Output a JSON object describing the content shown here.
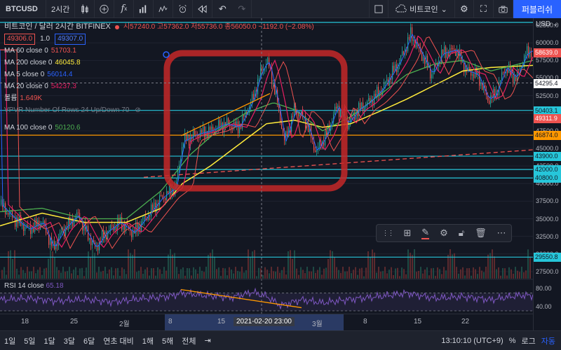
{
  "toolbar": {
    "symbol": "BTCUSD",
    "interval": "2시간",
    "compare_label": "비트코인",
    "publish_label": "퍼블리쉬",
    "icons": [
      "candle-type-icon",
      "add-indicator-icon",
      "fx-icon",
      "layout-icon",
      "template-icon",
      "alert-icon",
      "replay-icon",
      "undo-icon",
      "redo-icon"
    ]
  },
  "legend": {
    "title": "비트코인 / 달러  2시간  BITFINEX",
    "ohlc": "시57240.0 고57362.0 저55736.0 종56050.0 −1192.0 (−2.08%)",
    "sell_price": "49306.0",
    "qty": "1.0",
    "buy_price": "49307.0",
    "indicators": [
      {
        "label": "MA 60 close 0",
        "value": "51703.1",
        "color": "#ef5350"
      },
      {
        "label": "MA 200 close 0",
        "value": "46045.8",
        "color": "#ffeb3b"
      },
      {
        "label": "MA 5 close 0",
        "value": "56014.4",
        "color": "#2962ff"
      },
      {
        "label": "MA 20 close 0",
        "value": "54237.3",
        "color": "#e91e63"
      },
      {
        "label": "볼륨",
        "value": "1.649K",
        "color": "#ef5350"
      },
      {
        "label": "VPVR Number Of Rows 24 Up/Down 70",
        "value": "",
        "color": "#787b86"
      },
      {
        "label": "MA 100 close 0",
        "value": "50120.6",
        "color": "#4caf50"
      }
    ],
    "rsi_label": "RSI 14 close",
    "rsi_value": "65.18"
  },
  "currency": "USD",
  "chart_data": {
    "type": "candlestick",
    "y_ticks": [
      62500,
      60000,
      57500,
      55000,
      52500,
      50000,
      47500,
      45000,
      42500,
      40000,
      37500,
      35000,
      32500,
      30000,
      27500
    ],
    "ylim": [
      26500,
      63500
    ],
    "price_tags": [
      {
        "value": "58639.0",
        "color": "#ef5350"
      },
      {
        "value": "54295.4",
        "color": "#ffffff"
      },
      {
        "value": "50403.1",
        "color": "#26c6da"
      },
      {
        "value": "49311.9",
        "color": "#ef5350"
      },
      {
        "value": "46874.0",
        "color": "#ff9800"
      },
      {
        "value": "43900.0",
        "color": "#26c6da"
      },
      {
        "value": "42000.0",
        "color": "#26c6da"
      },
      {
        "value": "40800.0",
        "color": "#26c6da"
      },
      {
        "value": "29550.8",
        "color": "#26c6da"
      }
    ],
    "horizontal_levels": [
      {
        "value": 62900,
        "color": "#26c6da"
      },
      {
        "value": 50403.1,
        "color": "#26c6da"
      },
      {
        "value": 46874,
        "color": "#ff9800"
      },
      {
        "value": 43900,
        "color": "#26c6da"
      },
      {
        "value": 42000,
        "color": "#26c6da"
      },
      {
        "value": 40800,
        "color": "#26c6da"
      },
      {
        "value": 29550.8,
        "color": "#26c6da"
      }
    ],
    "x_ticks": [
      "18",
      "25",
      "2월",
      "8",
      "15",
      "3월",
      "8",
      "15",
      "22"
    ],
    "crosshair_label": "2021-02-20  23:00",
    "rsi_ticks": [
      80,
      40
    ],
    "price_path": [
      [
        0,
        37000
      ],
      [
        20,
        35000
      ],
      [
        40,
        33500
      ],
      [
        60,
        34500
      ],
      [
        75,
        30800
      ],
      [
        90,
        33500
      ],
      [
        110,
        35500
      ],
      [
        135,
        30800
      ],
      [
        150,
        33000
      ],
      [
        170,
        34500
      ],
      [
        190,
        33000
      ],
      [
        210,
        35500
      ],
      [
        230,
        38000
      ],
      [
        250,
        39500
      ],
      [
        260,
        46000
      ],
      [
        280,
        47000
      ],
      [
        300,
        47500
      ],
      [
        320,
        48500
      ],
      [
        340,
        48000
      ],
      [
        360,
        52000
      ],
      [
        370,
        55500
      ],
      [
        380,
        57500
      ],
      [
        385,
        56000
      ],
      [
        395,
        51500
      ],
      [
        405,
        46000
      ],
      [
        420,
        50500
      ],
      [
        435,
        49000
      ],
      [
        450,
        44500
      ],
      [
        465,
        47000
      ],
      [
        480,
        51000
      ],
      [
        495,
        48500
      ],
      [
        510,
        50500
      ],
      [
        525,
        51500
      ],
      [
        545,
        53500
      ],
      [
        570,
        57500
      ],
      [
        585,
        61200
      ],
      [
        600,
        58500
      ],
      [
        615,
        55500
      ],
      [
        630,
        58500
      ],
      [
        650,
        59000
      ],
      [
        665,
        56000
      ],
      [
        680,
        55500
      ],
      [
        695,
        52000
      ],
      [
        705,
        52500
      ],
      [
        720,
        56500
      ],
      [
        735,
        55000
      ],
      [
        750,
        58500
      ],
      [
        760,
        59000
      ]
    ],
    "ma200_path": [
      [
        0,
        34000
      ],
      [
        60,
        35800
      ],
      [
        120,
        34500
      ],
      [
        180,
        34500
      ],
      [
        230,
        36500
      ],
      [
        260,
        40000
      ],
      [
        300,
        42500
      ],
      [
        340,
        45500
      ],
      [
        380,
        48500
      ],
      [
        420,
        49000
      ],
      [
        460,
        48000
      ],
      [
        500,
        48500
      ],
      [
        540,
        50200
      ],
      [
        580,
        52000
      ],
      [
        620,
        54000
      ],
      [
        660,
        56000
      ],
      [
        700,
        56500
      ],
      [
        760,
        56800
      ]
    ],
    "ma100_path": [
      [
        0,
        36000
      ],
      [
        60,
        36500
      ],
      [
        120,
        35000
      ],
      [
        180,
        35000
      ],
      [
        230,
        39000
      ],
      [
        270,
        44000
      ],
      [
        310,
        47500
      ],
      [
        350,
        50000
      ],
      [
        390,
        51500
      ],
      [
        420,
        50500
      ],
      [
        460,
        47500
      ],
      [
        500,
        49500
      ],
      [
        540,
        52500
      ],
      [
        580,
        55500
      ],
      [
        620,
        57000
      ],
      [
        660,
        57500
      ],
      [
        700,
        56000
      ],
      [
        760,
        57500
      ]
    ],
    "rsi_path": [
      [
        0,
        55
      ],
      [
        40,
        58
      ],
      [
        80,
        52
      ],
      [
        120,
        56
      ],
      [
        160,
        50
      ],
      [
        200,
        57
      ],
      [
        240,
        62
      ],
      [
        260,
        70
      ],
      [
        290,
        65
      ],
      [
        330,
        60
      ],
      [
        360,
        72
      ],
      [
        380,
        63
      ],
      [
        400,
        42
      ],
      [
        430,
        55
      ],
      [
        460,
        48
      ],
      [
        500,
        56
      ],
      [
        540,
        62
      ],
      [
        580,
        70
      ],
      [
        620,
        58
      ],
      [
        660,
        62
      ],
      [
        700,
        55
      ],
      [
        740,
        65
      ],
      [
        760,
        64
      ]
    ]
  },
  "bottombar": {
    "ranges": [
      "1일",
      "5일",
      "1달",
      "3달",
      "6달",
      "연초 대비",
      "1해",
      "5해",
      "전체"
    ],
    "time": "13:10:10 (UTC+9)",
    "percent": "%",
    "log": "로그",
    "auto": "자동"
  }
}
